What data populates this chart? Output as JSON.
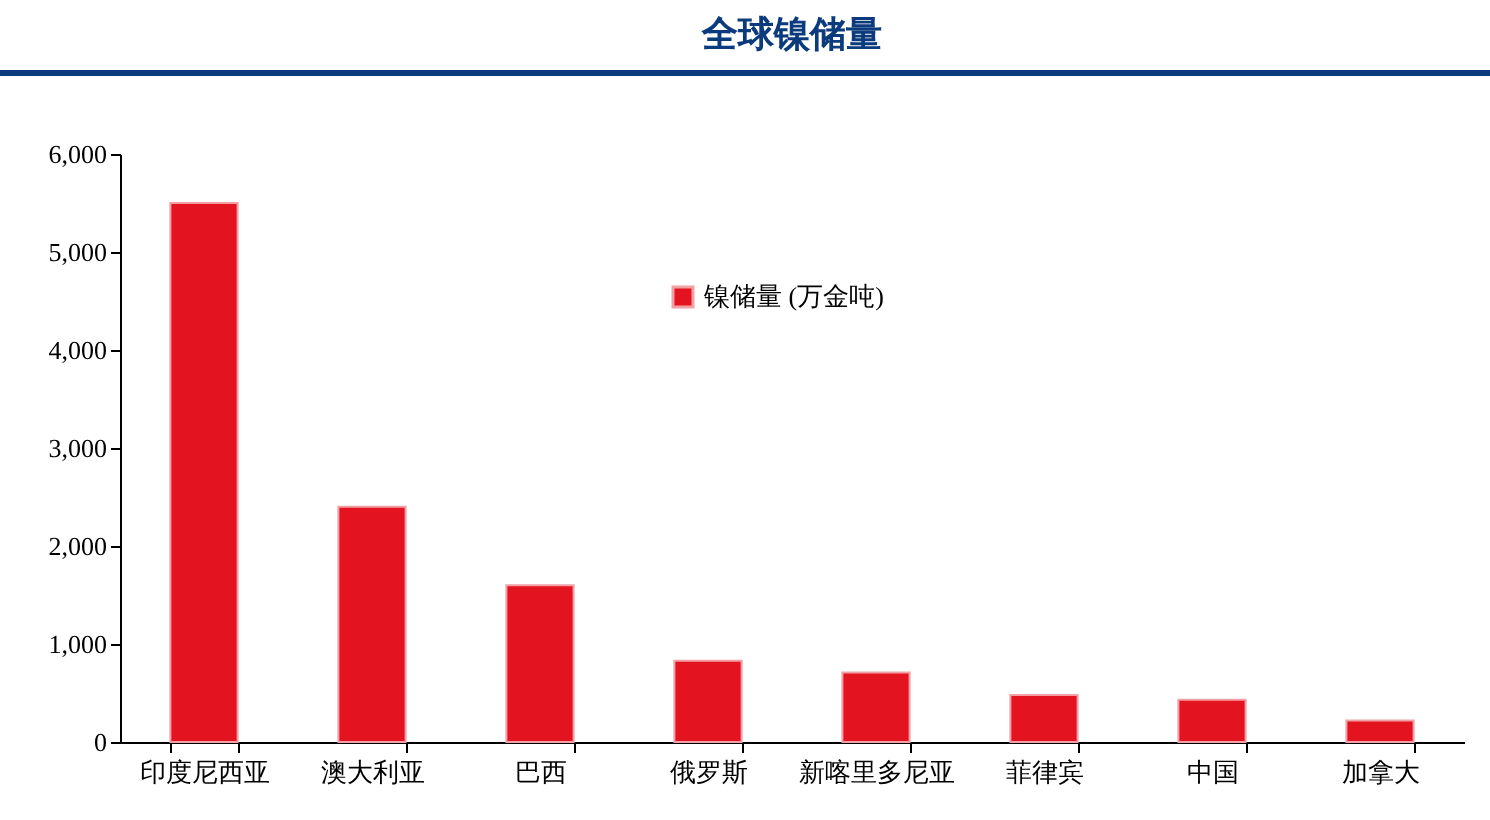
{
  "chart_data": {
    "type": "bar",
    "title": "全球镍储量",
    "categories": [
      "印度尼西亚",
      "澳大利亚",
      "巴西",
      "俄罗斯",
      "新喀里多尼亚",
      "菲律宾",
      "中国",
      "加拿大"
    ],
    "series": [
      {
        "name": "镍储量 (万金吨)",
        "color": "#e3141f",
        "values": [
          5500,
          2400,
          1600,
          830,
          710,
          480,
          430,
          220
        ]
      }
    ],
    "ylim": [
      0,
      6000
    ],
    "yticks": [
      {
        "value": 0,
        "label": "0"
      },
      {
        "value": 1000,
        "label": "1,000"
      },
      {
        "value": 2000,
        "label": "2,000"
      },
      {
        "value": 3000,
        "label": "3,000"
      },
      {
        "value": 4000,
        "label": "4,000"
      },
      {
        "value": 5000,
        "label": "5,000"
      },
      {
        "value": 6000,
        "label": "6,000"
      }
    ],
    "grid": false,
    "legend": "top"
  }
}
